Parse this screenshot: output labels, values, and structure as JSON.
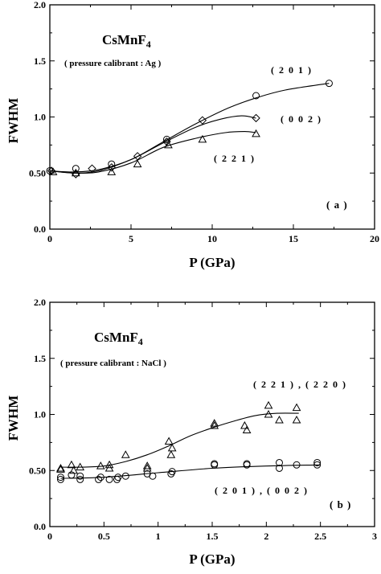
{
  "chart_data": [
    {
      "panel": "(a)",
      "type": "scatter",
      "title": "CsMnF4",
      "subtitle": "( pressure calibrant : Ag )",
      "xlabel": "P (GPa)",
      "ylabel": "FWHM",
      "xlim": [
        0,
        20
      ],
      "ylim": [
        0.0,
        2.0
      ],
      "xticks": [
        0,
        5,
        10,
        15,
        20
      ],
      "yticks": [
        0.0,
        0.5,
        1.0,
        1.5,
        2.0
      ],
      "xtick_labels": [
        "0",
        "5",
        "10",
        "15",
        "20"
      ],
      "ytick_labels": [
        "0.0",
        "0.50",
        "1.0",
        "1.5",
        "2.0"
      ],
      "grid": false,
      "series": [
        {
          "name": "(201)",
          "marker": "circle",
          "points": [
            [
              0.0,
              0.52
            ],
            [
              1.6,
              0.54
            ],
            [
              3.8,
              0.58
            ],
            [
              7.2,
              0.8
            ],
            [
              12.7,
              1.19
            ],
            [
              17.2,
              1.3
            ]
          ],
          "curve": [
            [
              0.0,
              0.52
            ],
            [
              1.5,
              0.51
            ],
            [
              3.0,
              0.53
            ],
            [
              5.0,
              0.62
            ],
            [
              7.0,
              0.78
            ],
            [
              9.0,
              0.94
            ],
            [
              11.0,
              1.08
            ],
            [
              12.7,
              1.17
            ],
            [
              14.5,
              1.24
            ],
            [
              17.2,
              1.3
            ]
          ]
        },
        {
          "name": "(002)",
          "marker": "diamond",
          "points": [
            [
              0.1,
              0.52
            ],
            [
              1.6,
              0.49
            ],
            [
              2.6,
              0.54
            ],
            [
              3.8,
              0.55
            ],
            [
              5.4,
              0.65
            ],
            [
              7.2,
              0.78
            ],
            [
              9.4,
              0.97
            ],
            [
              12.7,
              0.99
            ]
          ],
          "curve": [
            [
              0.0,
              0.52
            ],
            [
              1.5,
              0.5
            ],
            [
              3.0,
              0.52
            ],
            [
              5.0,
              0.62
            ],
            [
              7.0,
              0.77
            ],
            [
              9.0,
              0.91
            ],
            [
              10.5,
              0.98
            ],
            [
              11.8,
              1.01
            ],
            [
              12.7,
              0.99
            ]
          ]
        },
        {
          "name": "(221)",
          "marker": "triangle",
          "points": [
            [
              0.2,
              0.51
            ],
            [
              1.6,
              0.5
            ],
            [
              3.8,
              0.51
            ],
            [
              5.4,
              0.58
            ],
            [
              7.3,
              0.75
            ],
            [
              9.4,
              0.8
            ],
            [
              12.7,
              0.85
            ]
          ],
          "curve": [
            [
              0.0,
              0.52
            ],
            [
              1.5,
              0.5
            ],
            [
              3.0,
              0.51
            ],
            [
              5.0,
              0.59
            ],
            [
              7.0,
              0.73
            ],
            [
              9.0,
              0.81
            ],
            [
              10.8,
              0.86
            ],
            [
              12.0,
              0.87
            ],
            [
              12.7,
              0.86
            ]
          ]
        }
      ],
      "annotations": [
        "( 2 0 1 )",
        "( 0 0 2 )",
        "( 2 2 1 )",
        "( a )"
      ]
    },
    {
      "panel": "(b)",
      "type": "scatter",
      "title": "CsMnF4",
      "subtitle": "( pressure calibrant : NaCl )",
      "xlabel": "P (GPa)",
      "ylabel": "FWHM",
      "xlim": [
        0,
        3
      ],
      "ylim": [
        0.0,
        2.0
      ],
      "xticks": [
        0,
        0.5,
        1,
        1.5,
        2,
        2.5,
        3
      ],
      "yticks": [
        0.0,
        0.5,
        1.0,
        1.5,
        2.0
      ],
      "xtick_labels": [
        "0",
        "0.5",
        "1",
        "1.5",
        "2",
        "2.5",
        "3"
      ],
      "ytick_labels": [
        "0.0",
        "0.50",
        "1.0",
        "1.5",
        "2.0"
      ],
      "grid": false,
      "series": [
        {
          "name": "(221),(220)",
          "marker": "triangle",
          "points": [
            [
              0.1,
              0.51
            ],
            [
              0.1,
              0.52
            ],
            [
              0.2,
              0.55
            ],
            [
              0.22,
              0.5
            ],
            [
              0.28,
              0.53
            ],
            [
              0.47,
              0.54
            ],
            [
              0.55,
              0.52
            ],
            [
              0.55,
              0.55
            ],
            [
              0.7,
              0.64
            ],
            [
              0.9,
              0.52
            ],
            [
              0.9,
              0.54
            ],
            [
              1.1,
              0.76
            ],
            [
              1.12,
              0.64
            ],
            [
              1.13,
              0.7
            ],
            [
              1.52,
              0.9
            ],
            [
              1.52,
              0.92
            ],
            [
              1.8,
              0.9
            ],
            [
              1.82,
              0.86
            ],
            [
              2.02,
              1.08
            ],
            [
              2.02,
              1.0
            ],
            [
              2.12,
              0.95
            ],
            [
              2.28,
              1.06
            ],
            [
              2.28,
              0.95
            ]
          ],
          "curve": [
            [
              0.1,
              0.53
            ],
            [
              0.3,
              0.53
            ],
            [
              0.5,
              0.54
            ],
            [
              0.7,
              0.58
            ],
            [
              0.9,
              0.64
            ],
            [
              1.1,
              0.72
            ],
            [
              1.3,
              0.81
            ],
            [
              1.5,
              0.88
            ],
            [
              1.7,
              0.94
            ],
            [
              1.9,
              0.99
            ],
            [
              2.1,
              1.01
            ],
            [
              2.3,
              1.01
            ]
          ]
        },
        {
          "name": "(201),(002)",
          "marker": "circle",
          "points": [
            [
              0.1,
              0.42
            ],
            [
              0.1,
              0.44
            ],
            [
              0.2,
              0.46
            ],
            [
              0.28,
              0.42
            ],
            [
              0.28,
              0.45
            ],
            [
              0.45,
              0.42
            ],
            [
              0.47,
              0.44
            ],
            [
              0.55,
              0.42
            ],
            [
              0.62,
              0.42
            ],
            [
              0.63,
              0.44
            ],
            [
              0.7,
              0.45
            ],
            [
              0.9,
              0.47
            ],
            [
              0.95,
              0.45
            ],
            [
              1.12,
              0.47
            ],
            [
              1.13,
              0.49
            ],
            [
              1.52,
              0.55
            ],
            [
              1.52,
              0.56
            ],
            [
              1.82,
              0.56
            ],
            [
              1.82,
              0.55
            ],
            [
              2.12,
              0.52
            ],
            [
              2.12,
              0.57
            ],
            [
              2.28,
              0.55
            ],
            [
              2.47,
              0.55
            ],
            [
              2.47,
              0.57
            ]
          ],
          "curve": [
            [
              0.1,
              0.43
            ],
            [
              0.5,
              0.44
            ],
            [
              1.0,
              0.48
            ],
            [
              1.5,
              0.52
            ],
            [
              2.0,
              0.54
            ],
            [
              2.5,
              0.55
            ]
          ]
        }
      ],
      "annotations": [
        "( 2 2 1 ) , ( 2 2 0 )",
        "( 2 0 1 ) , ( 0 0 2 )",
        "( b )"
      ]
    }
  ],
  "labels": {
    "a": {
      "title_main": "CsMnF",
      "title_sub": "4",
      "subtitle": "( pressure calibrant : Ag )",
      "ann_201": "( 2 0 1 )",
      "ann_002": "( 0 0 2 )",
      "ann_221": "( 2 2 1 )",
      "panel": "( a )",
      "xlabel": "P (GPa)",
      "ylabel": "FWHM"
    },
    "b": {
      "title_main": "CsMnF",
      "title_sub": "4",
      "subtitle": "( pressure calibrant : NaCl )",
      "ann_221_220": "( 2 2 1 ) , ( 2 2 0 )",
      "ann_201_002": "( 2 0 1 ) , ( 0 0 2 )",
      "panel": "( b )",
      "xlabel": "P (GPa)",
      "ylabel": "FWHM"
    }
  }
}
